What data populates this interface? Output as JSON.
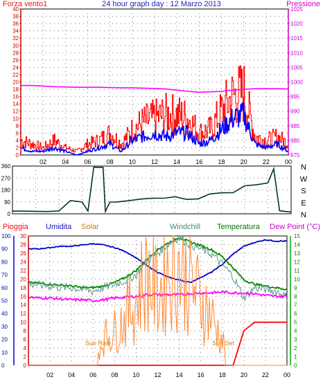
{
  "header": {
    "title": "24 hour graph day : 12 Marzo 2013",
    "left_label": "Forza vento1",
    "right_label": "Pressione"
  },
  "direction_labels": [
    "N",
    "W",
    "S",
    "E",
    "N"
  ],
  "direction_ticks": [
    "360",
    "270",
    "180",
    "90",
    "0"
  ],
  "bottom_legend": {
    "pioggia": "Pioggia",
    "umidita": "Umidita",
    "solar": "Solar",
    "windchill": "Windchill",
    "temperatura": "Temperatura",
    "dewpoint": "Dew Point (°C)"
  },
  "annotations": {
    "sunrise": "Sun Rise",
    "sunset": "Sun Set"
  },
  "colors": {
    "wind_gust": "#ff0000",
    "wind_avg": "#0000ff",
    "pressure": "#ff00ff",
    "direction": "#003333",
    "humidity": "#0000cc",
    "solar": "#ff8833",
    "windchill": "#559988",
    "temperature": "#008800",
    "dewpoint": "#ff00ff",
    "rain": "#ff0000"
  },
  "chart_data": [
    {
      "type": "line",
      "name": "wind-and-pressure",
      "x_tick_labels": [
        "02",
        "04",
        "06",
        "08",
        "10",
        "12",
        "14",
        "16",
        "18",
        "20",
        "22",
        "00"
      ],
      "y_left_ticks": [
        "0",
        "2",
        "4",
        "6",
        "8",
        "10",
        "12",
        "14",
        "16",
        "18",
        "20",
        "22",
        "24",
        "26",
        "28",
        "30",
        "32",
        "34",
        "36",
        "38",
        "40"
      ],
      "y_right_ticks": [
        "975",
        "980",
        "985",
        "990",
        "995",
        "1000",
        "1005",
        "1010",
        "1015",
        "1020",
        "1025"
      ],
      "ylim_left": [
        0,
        40
      ],
      "ylim_right": [
        975,
        1025
      ],
      "x_hours": [
        0,
        1,
        2,
        3,
        4,
        5,
        6,
        7,
        8,
        9,
        10,
        11,
        12,
        13,
        14,
        15,
        16,
        17,
        18,
        19,
        20,
        21,
        22,
        23,
        24
      ],
      "series": [
        {
          "axis": "left",
          "color_key": "wind_gust",
          "values": [
            4,
            3,
            2,
            4,
            2,
            1,
            3,
            4,
            6,
            3,
            7,
            9,
            10,
            11,
            11,
            10,
            6,
            7,
            12,
            16,
            17,
            5,
            4,
            5,
            3
          ]
        },
        {
          "axis": "left",
          "color_key": "wind_avg",
          "values": [
            2,
            1,
            1,
            2,
            1,
            0,
            1,
            2,
            3,
            1,
            4,
            5,
            6,
            5,
            6,
            6,
            3,
            4,
            7,
            10,
            11,
            3,
            2,
            3,
            1
          ]
        },
        {
          "axis": "right",
          "color_key": "pressure",
          "values": [
            998.8,
            998.8,
            998.6,
            998.4,
            998.3,
            998.2,
            998.2,
            998.2,
            998.1,
            998.0,
            998.0,
            997.9,
            997.8,
            997.6,
            997.2,
            996.8,
            996.5,
            996.6,
            996.8,
            997.2,
            997.5,
            997.7,
            997.7,
            997.7,
            997.6
          ]
        }
      ]
    },
    {
      "type": "line",
      "name": "wind-direction",
      "x_hours": [
        0,
        1,
        2,
        3,
        4,
        5,
        6,
        6.5,
        7,
        7.8,
        8,
        8.4,
        9,
        10,
        11,
        12,
        13,
        14,
        15,
        16,
        17,
        18,
        19,
        20,
        21,
        22,
        22.5,
        23,
        24
      ],
      "ylim": [
        0,
        360
      ],
      "series": [
        {
          "color_key": "direction",
          "values": [
            20,
            20,
            20,
            20,
            20,
            100,
            90,
            20,
            350,
            350,
            20,
            90,
            90,
            100,
            110,
            120,
            120,
            130,
            110,
            110,
            150,
            160,
            160,
            210,
            220,
            230,
            340,
            20,
            10
          ]
        }
      ]
    },
    {
      "type": "line",
      "name": "weather-multi",
      "ylim_rain": [
        0,
        30
      ],
      "ylim_humidity": [
        0,
        100
      ],
      "ylim_temp": [
        0,
        15
      ],
      "y_rain_ticks": [
        "0",
        "2",
        "4",
        "6",
        "8",
        "10",
        "12",
        "14",
        "16",
        "18",
        "20",
        "22",
        "24",
        "26",
        "28",
        "30"
      ],
      "y_humidity_ticks": [
        "0",
        "10",
        "20",
        "30",
        "40",
        "50",
        "60",
        "70",
        "80",
        "90",
        "100"
      ],
      "y_temp_ticks": [
        "0",
        "1",
        "2",
        "3",
        "4",
        "5",
        "6",
        "7",
        "8",
        "9",
        "10",
        "11",
        "12",
        "13",
        "14",
        "15"
      ],
      "x_hours": [
        0,
        1,
        2,
        3,
        4,
        5,
        6,
        7,
        8,
        9,
        10,
        11,
        12,
        13,
        14,
        15,
        16,
        17,
        18,
        19,
        20,
        21,
        22,
        23,
        24
      ],
      "series": [
        {
          "axis": "humidity",
          "color_key": "humidity",
          "values": [
            90,
            90,
            91,
            92,
            92,
            93,
            94,
            93,
            91,
            88,
            83,
            77,
            72,
            68,
            66,
            64,
            68,
            72,
            78,
            86,
            92,
            95,
            97,
            96,
            96
          ]
        },
        {
          "axis": "temp",
          "color_key": "temperature",
          "values": [
            9.6,
            9.5,
            9.4,
            9.3,
            9.2,
            9.0,
            9.0,
            9.2,
            9.6,
            10.2,
            11.0,
            12.3,
            13.4,
            14.2,
            14.8,
            14.3,
            13.9,
            13.4,
            12.6,
            11.3,
            9.9,
            9.4,
            9.2,
            9.0,
            8.8
          ]
        },
        {
          "axis": "temp",
          "color_key": "windchill",
          "values": [
            9.5,
            9.3,
            9.2,
            9.0,
            9.0,
            8.8,
            8.6,
            9.0,
            9.4,
            9.8,
            10.5,
            12.0,
            13.0,
            14.1,
            14.8,
            14.0,
            13.5,
            12.9,
            11.7,
            10.3,
            7.8,
            9.0,
            8.8,
            8.6,
            7.9
          ]
        },
        {
          "axis": "temp",
          "color_key": "dewpoint",
          "values": [
            7.9,
            7.8,
            7.8,
            7.7,
            7.6,
            7.6,
            7.5,
            7.6,
            7.8,
            7.9,
            8.0,
            8.2,
            8.2,
            8.2,
            8.2,
            8.3,
            8.4,
            8.4,
            8.5,
            8.4,
            8.4,
            8.3,
            8.1,
            8.0,
            8.0
          ]
        },
        {
          "axis": "rain",
          "color_key": "rain",
          "values": [
            0,
            0,
            0,
            0,
            0,
            0,
            0,
            0,
            0,
            0,
            0,
            0,
            0,
            0,
            0,
            0,
            0,
            0,
            0,
            0,
            8,
            10,
            10,
            10,
            10
          ]
        },
        {
          "axis": "rain",
          "color_key": "solar",
          "values": [
            0,
            0,
            0,
            0,
            0,
            0,
            0,
            8,
            10,
            14,
            19,
            27,
            20,
            28,
            29,
            24,
            19,
            14,
            7,
            0,
            0,
            0,
            0,
            0,
            0
          ]
        }
      ]
    }
  ]
}
